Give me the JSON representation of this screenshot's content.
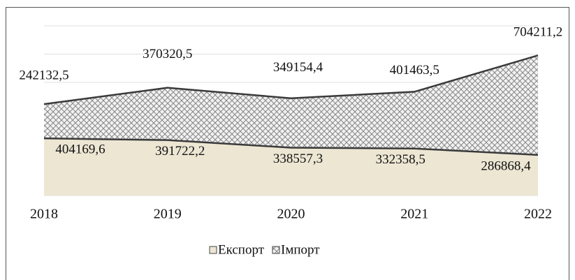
{
  "chart_data": {
    "type": "stacked_area",
    "categories": [
      "2018",
      "2019",
      "2020",
      "2021",
      "2022"
    ],
    "series": [
      {
        "name": "Експорт",
        "color": "#ece6d3",
        "values": [
          404169.6,
          391722.2,
          338557.3,
          332358.5,
          286868.4
        ],
        "value_labels": [
          "404169,6",
          "391722,2",
          "338557,3",
          "332358,5",
          "286868,4"
        ]
      },
      {
        "name": "Імпорт",
        "color": "#bdbdbd",
        "values": [
          242132.5,
          370320.5,
          349154.4,
          401463.5,
          704211.2
        ],
        "value_labels": [
          "242132,5",
          "370320,5",
          "349154,4",
          "401463,5",
          "704211,2"
        ]
      }
    ],
    "ylim": [
      0,
      1200000
    ],
    "yticks": [
      0,
      200000,
      400000,
      600000,
      800000,
      1000000,
      1200000
    ],
    "grid": true,
    "legend": "bottom"
  }
}
